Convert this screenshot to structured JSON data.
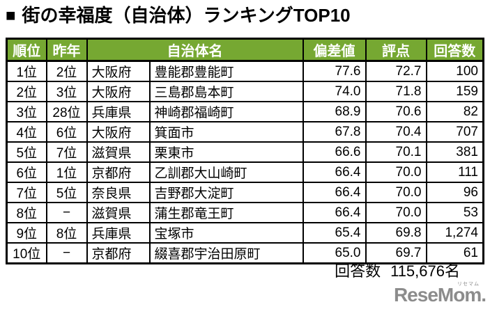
{
  "title": {
    "bullet": "■",
    "text": "街の幸福度（自治体）ランキングTOP10"
  },
  "colors": {
    "header_green": "#76A832",
    "border": "#000000",
    "logo_gray": "#8C8C8C"
  },
  "table": {
    "headers": {
      "rank": "順位",
      "last_year": "昨年",
      "municipality": "自治体名",
      "deviation": "偏差値",
      "score": "評点",
      "responses": "回答数"
    },
    "rows": [
      {
        "rank": "1位",
        "last_year": "2位",
        "prefecture": "大阪府",
        "municipality": "豊能郡豊能町",
        "deviation": "77.6",
        "score": "72.7",
        "responses": "100"
      },
      {
        "rank": "2位",
        "last_year": "3位",
        "prefecture": "大阪府",
        "municipality": "三島郡島本町",
        "deviation": "74.0",
        "score": "71.8",
        "responses": "159"
      },
      {
        "rank": "3位",
        "last_year": "28位",
        "prefecture": "兵庫県",
        "municipality": "神崎郡福崎町",
        "deviation": "68.9",
        "score": "70.6",
        "responses": "82"
      },
      {
        "rank": "4位",
        "last_year": "6位",
        "prefecture": "大阪府",
        "municipality": "箕面市",
        "deviation": "67.8",
        "score": "70.4",
        "responses": "707"
      },
      {
        "rank": "5位",
        "last_year": "7位",
        "prefecture": "滋賀県",
        "municipality": "栗東市",
        "deviation": "66.6",
        "score": "70.1",
        "responses": "381"
      },
      {
        "rank": "6位",
        "last_year": "1位",
        "prefecture": "京都府",
        "municipality": "乙訓郡大山崎町",
        "deviation": "66.4",
        "score": "70.0",
        "responses": "111"
      },
      {
        "rank": "7位",
        "last_year": "5位",
        "prefecture": "奈良県",
        "municipality": "吉野郡大淀町",
        "deviation": "66.4",
        "score": "70.0",
        "responses": "96"
      },
      {
        "rank": "8位",
        "last_year": "−",
        "prefecture": "滋賀県",
        "municipality": "蒲生郡竜王町",
        "deviation": "66.4",
        "score": "70.0",
        "responses": "53"
      },
      {
        "rank": "9位",
        "last_year": "8位",
        "prefecture": "兵庫県",
        "municipality": "宝塚市",
        "deviation": "65.4",
        "score": "69.8",
        "responses": "1,274"
      },
      {
        "rank": "10位",
        "last_year": "−",
        "prefecture": "京都府",
        "municipality": "綴喜郡宇治田原町",
        "deviation": "65.0",
        "score": "69.7",
        "responses": "61"
      }
    ]
  },
  "footer": {
    "label": "回答数",
    "value": "115,676名"
  },
  "logo": {
    "text": "ReseMom.",
    "ruby": "リセマム"
  }
}
